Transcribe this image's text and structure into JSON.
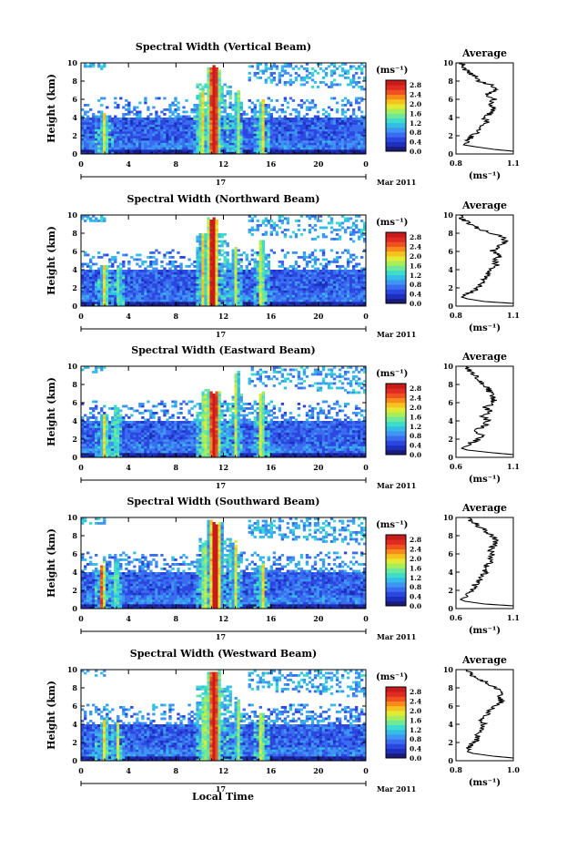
{
  "figure": {
    "x_axis_title": "Local Time",
    "date_label": "Mar 2011",
    "day_label": "17",
    "avg_title": "Average",
    "height_label": "Height (km)",
    "unit_label": "(ms⁻¹)"
  },
  "colors": {
    "scale": [
      "#1b1b7a",
      "#1d2fbd",
      "#2c46e0",
      "#3a6cf0",
      "#3f95f2",
      "#35bde8",
      "#3ddccb",
      "#6fe89a",
      "#a8ee5a",
      "#e2ea33",
      "#f6c21f",
      "#f78a19",
      "#ef5220",
      "#e02b23",
      "#c81b1b"
    ],
    "missing": "#ffffff"
  },
  "chart_data": [
    {
      "type": "heatmap",
      "title": "Spectral Width (Vertical Beam)",
      "beam": "vertical",
      "xlim": [
        0,
        24
      ],
      "ylim": [
        0,
        10
      ],
      "x_ticks": [
        "0",
        "4",
        "8",
        "12",
        "16",
        "20",
        "0"
      ],
      "y_ticks": [
        "0",
        "2",
        "4",
        "6",
        "8",
        "10"
      ],
      "colorbar": {
        "ticks": [
          "0.0",
          "0.4",
          "0.8",
          "1.2",
          "1.6",
          "2.0",
          "2.4",
          "2.8"
        ],
        "range": [
          0,
          3.0
        ]
      },
      "events": [
        {
          "t": 2.0,
          "w": 0.6,
          "top": 4.2,
          "v": 1.3
        },
        {
          "t": 10.2,
          "w": 0.5,
          "top": 6.5,
          "v": 1.5
        },
        {
          "t": 11.2,
          "w": 1.1,
          "top": 9.2,
          "v": 2.8
        },
        {
          "t": 13.2,
          "w": 0.4,
          "top": 6.5,
          "v": 1.2
        },
        {
          "t": 15.3,
          "w": 0.5,
          "top": 5.5,
          "v": 1.4
        }
      ],
      "average_profile": {
        "xlim": [
          0.8,
          1.1
        ],
        "x_ticks": [
          "0.8",
          "1.1"
        ],
        "ylim": [
          0,
          10
        ],
        "y_ticks": [
          "0",
          "2",
          "4",
          "6",
          "8",
          "10"
        ],
        "height": [
          0.3,
          0.5,
          0.8,
          1.0,
          1.5,
          2.0,
          2.5,
          3.0,
          3.5,
          4.0,
          4.5,
          5.0,
          5.5,
          6.0,
          6.5,
          7.0,
          7.5,
          8.0,
          8.5,
          9.0,
          9.5,
          10.0
        ],
        "value": [
          1.1,
          1.0,
          0.9,
          0.84,
          0.86,
          0.89,
          0.92,
          0.94,
          0.96,
          0.95,
          0.98,
          1.0,
          0.97,
          1.01,
          0.96,
          1.0,
          0.99,
          0.92,
          0.9,
          0.86,
          0.84,
          0.83
        ]
      }
    },
    {
      "type": "heatmap",
      "title": "Spectral Width (Northward Beam)",
      "beam": "northward",
      "xlim": [
        0,
        24
      ],
      "ylim": [
        0,
        10
      ],
      "x_ticks": [
        "0",
        "4",
        "8",
        "12",
        "16",
        "20",
        "0"
      ],
      "y_ticks": [
        "0",
        "2",
        "4",
        "6",
        "8",
        "10"
      ],
      "colorbar": {
        "ticks": [
          "0.0",
          "0.4",
          "0.8",
          "1.2",
          "1.6",
          "2.0",
          "2.4",
          "2.8"
        ],
        "range": [
          0,
          3.0
        ]
      },
      "events": [
        {
          "t": 2.0,
          "w": 0.6,
          "top": 4.2,
          "v": 1.3
        },
        {
          "t": 3.2,
          "w": 0.4,
          "top": 4.0,
          "v": 1.0
        },
        {
          "t": 10.3,
          "w": 0.5,
          "top": 7.5,
          "v": 1.4
        },
        {
          "t": 11.1,
          "w": 1.0,
          "top": 9.4,
          "v": 2.8
        },
        {
          "t": 13.0,
          "w": 0.4,
          "top": 6.0,
          "v": 1.2
        },
        {
          "t": 15.2,
          "w": 0.5,
          "top": 7.0,
          "v": 1.4
        }
      ],
      "average_profile": {
        "xlim": [
          0.8,
          1.1
        ],
        "x_ticks": [
          "0.8",
          "1.1"
        ],
        "ylim": [
          0,
          10
        ],
        "y_ticks": [
          "0",
          "2",
          "4",
          "6",
          "8",
          "10"
        ],
        "height": [
          0.3,
          0.5,
          0.8,
          1.0,
          1.5,
          2.0,
          2.5,
          3.0,
          3.5,
          4.0,
          4.5,
          5.0,
          5.5,
          6.0,
          6.5,
          7.0,
          7.5,
          8.0,
          8.5,
          9.0,
          9.5,
          10.0
        ],
        "value": [
          1.1,
          0.95,
          0.86,
          0.83,
          0.88,
          0.91,
          0.93,
          0.95,
          0.97,
          0.98,
          1.01,
          1.0,
          1.03,
          0.99,
          1.02,
          1.05,
          1.06,
          0.98,
          0.92,
          0.88,
          0.84,
          0.82
        ]
      }
    },
    {
      "type": "heatmap",
      "title": "Spectral Width (Eastward Beam)",
      "beam": "eastward",
      "xlim": [
        0,
        24
      ],
      "ylim": [
        0,
        10
      ],
      "x_ticks": [
        "0",
        "4",
        "8",
        "12",
        "16",
        "20",
        "0"
      ],
      "y_ticks": [
        "0",
        "2",
        "4",
        "6",
        "8",
        "10"
      ],
      "colorbar": {
        "ticks": [
          "0.0",
          "0.4",
          "0.8",
          "1.2",
          "1.6",
          "2.0",
          "2.4",
          "2.8"
        ],
        "range": [
          0,
          3.0
        ]
      },
      "events": [
        {
          "t": 2.0,
          "w": 0.6,
          "top": 4.5,
          "v": 1.3
        },
        {
          "t": 3.0,
          "w": 0.4,
          "top": 5.5,
          "v": 1.1
        },
        {
          "t": 10.4,
          "w": 0.5,
          "top": 7.0,
          "v": 1.4
        },
        {
          "t": 11.2,
          "w": 1.1,
          "top": 7.0,
          "v": 2.8
        },
        {
          "t": 13.1,
          "w": 0.4,
          "top": 9.0,
          "v": 1.3
        },
        {
          "t": 15.2,
          "w": 0.5,
          "top": 7.0,
          "v": 1.5
        }
      ],
      "average_profile": {
        "xlim": [
          0.6,
          1.1
        ],
        "x_ticks": [
          "0.6",
          "1.1"
        ],
        "ylim": [
          0,
          10
        ],
        "y_ticks": [
          "0",
          "2",
          "4",
          "6",
          "8",
          "10"
        ],
        "height": [
          0.3,
          0.5,
          0.8,
          1.0,
          1.5,
          2.0,
          2.5,
          3.0,
          3.5,
          4.0,
          4.5,
          5.0,
          5.5,
          6.0,
          6.5,
          7.0,
          7.5,
          8.0,
          8.5,
          9.0,
          9.5,
          10.0
        ],
        "value": [
          1.1,
          0.92,
          0.7,
          0.65,
          0.72,
          0.8,
          0.82,
          0.78,
          0.85,
          0.88,
          0.84,
          0.9,
          0.86,
          0.94,
          0.92,
          0.9,
          0.88,
          0.84,
          0.8,
          0.76,
          0.72,
          0.7
        ]
      }
    },
    {
      "type": "heatmap",
      "title": "Spectral Width (Southward Beam)",
      "beam": "southward",
      "xlim": [
        0,
        24
      ],
      "ylim": [
        0,
        10
      ],
      "x_ticks": [
        "0",
        "4",
        "8",
        "12",
        "16",
        "20",
        "0"
      ],
      "y_ticks": [
        "0",
        "2",
        "4",
        "6",
        "8",
        "10"
      ],
      "colorbar": {
        "ticks": [
          "0.0",
          "0.4",
          "0.8",
          "1.2",
          "1.6",
          "2.0",
          "2.4",
          "2.8"
        ],
        "range": [
          0,
          3.0
        ]
      },
      "events": [
        {
          "t": 1.8,
          "w": 0.5,
          "top": 4.6,
          "v": 2.2
        },
        {
          "t": 3.0,
          "w": 0.4,
          "top": 4.8,
          "v": 1.1
        },
        {
          "t": 10.4,
          "w": 0.5,
          "top": 6.5,
          "v": 1.4
        },
        {
          "t": 11.3,
          "w": 1.1,
          "top": 9.2,
          "v": 2.8
        },
        {
          "t": 13.0,
          "w": 0.4,
          "top": 7.0,
          "v": 1.3
        },
        {
          "t": 15.3,
          "w": 0.5,
          "top": 4.5,
          "v": 1.4
        }
      ],
      "average_profile": {
        "xlim": [
          0.6,
          1.1
        ],
        "x_ticks": [
          "0.6",
          "1.1"
        ],
        "ylim": [
          0,
          10
        ],
        "y_ticks": [
          "0",
          "2",
          "4",
          "6",
          "8",
          "10"
        ],
        "height": [
          0.3,
          0.5,
          0.8,
          1.0,
          1.5,
          2.0,
          2.5,
          3.0,
          3.5,
          4.0,
          4.5,
          5.0,
          5.5,
          6.0,
          6.5,
          7.0,
          7.5,
          8.0,
          8.5,
          9.0,
          9.5,
          10.0
        ],
        "value": [
          1.1,
          0.85,
          0.68,
          0.64,
          0.7,
          0.74,
          0.76,
          0.8,
          0.83,
          0.86,
          0.84,
          0.9,
          0.88,
          0.92,
          0.9,
          0.94,
          0.95,
          0.92,
          0.86,
          0.8,
          0.74,
          0.7
        ]
      }
    },
    {
      "type": "heatmap",
      "title": "Spectral Width (Westward Beam)",
      "beam": "westward",
      "xlim": [
        0,
        24
      ],
      "ylim": [
        0,
        10
      ],
      "x_ticks": [
        "0",
        "4",
        "8",
        "12",
        "16",
        "20",
        "0"
      ],
      "y_ticks": [
        "0",
        "2",
        "4",
        "6",
        "8",
        "10"
      ],
      "colorbar": {
        "ticks": [
          "0.0",
          "0.4",
          "0.8",
          "1.2",
          "1.6",
          "2.0",
          "2.4",
          "2.8"
        ],
        "range": [
          0,
          3.0
        ]
      },
      "events": [
        {
          "t": 2.0,
          "w": 0.6,
          "top": 4.3,
          "v": 1.3
        },
        {
          "t": 3.1,
          "w": 0.4,
          "top": 4.0,
          "v": 1.0
        },
        {
          "t": 10.4,
          "w": 0.5,
          "top": 7.0,
          "v": 1.4
        },
        {
          "t": 11.2,
          "w": 1.1,
          "top": 9.6,
          "v": 2.8
        },
        {
          "t": 13.2,
          "w": 0.4,
          "top": 6.5,
          "v": 1.2
        },
        {
          "t": 15.2,
          "w": 0.5,
          "top": 5.0,
          "v": 1.4
        }
      ],
      "average_profile": {
        "xlim": [
          0.8,
          1.0
        ],
        "x_ticks": [
          "0.8",
          "1.0"
        ],
        "ylim": [
          0,
          10
        ],
        "y_ticks": [
          "0",
          "2",
          "4",
          "6",
          "8",
          "10"
        ],
        "height": [
          0.3,
          0.5,
          0.8,
          1.0,
          1.5,
          2.0,
          2.5,
          3.0,
          3.5,
          4.0,
          4.5,
          5.0,
          5.5,
          6.0,
          6.5,
          7.0,
          7.5,
          8.0,
          8.5,
          9.0,
          9.5,
          10.0
        ],
        "value": [
          1.0,
          0.93,
          0.86,
          0.84,
          0.85,
          0.86,
          0.88,
          0.87,
          0.89,
          0.9,
          0.89,
          0.91,
          0.92,
          0.93,
          0.96,
          0.95,
          0.97,
          0.94,
          0.91,
          0.88,
          0.85,
          0.84
        ]
      }
    }
  ]
}
